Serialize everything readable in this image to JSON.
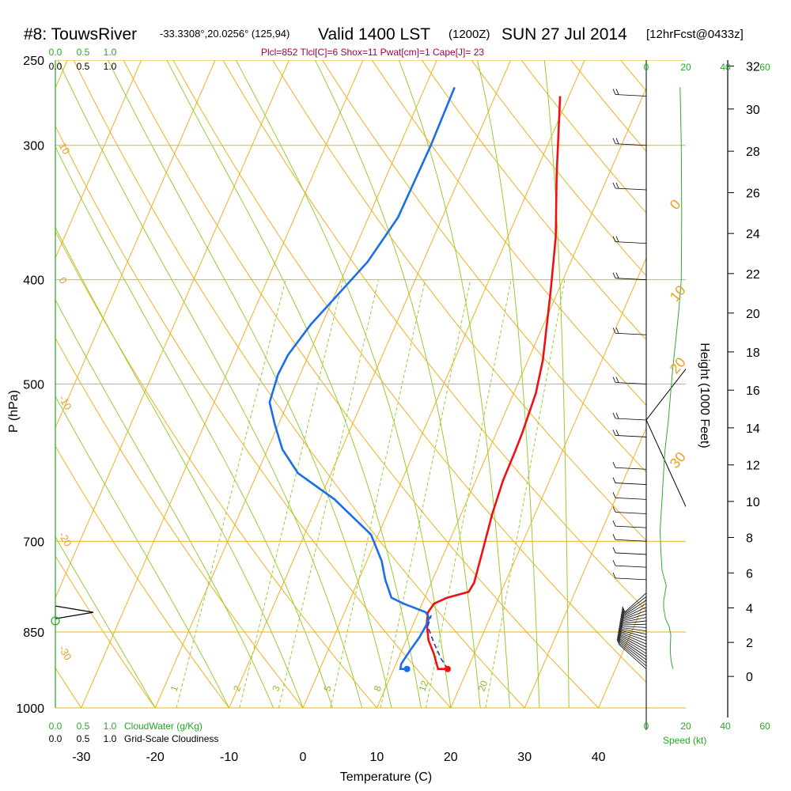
{
  "header": {
    "station": "#8: TouwsRiver",
    "coords": "-33.3308°,20.0256° (125,94)",
    "valid": "Valid 1400 LST",
    "zulu": "(1200Z)",
    "date": "SUN 27 Jul 2014",
    "forecast": "[12hrFcst@0433z]",
    "params": "Plcl=852 Tlcl[C]=6 Shox=11 Pwat[cm]=1 Cape[J]= 23"
  },
  "chart_data": {
    "type": "line",
    "xlabel": "Temperature (C)",
    "ylabel": "P (hPa)",
    "y2label": "Height (1000 Feet)",
    "xlim": [
      -34,
      46
    ],
    "ylim_pressure": [
      1000,
      250
    ],
    "x_ticks": [
      -30,
      -20,
      -10,
      0,
      10,
      20,
      30,
      40
    ],
    "pressure_ticks": [
      250,
      300,
      400,
      500,
      700,
      850,
      1000
    ],
    "height_ticks": [
      0,
      2,
      4,
      6,
      8,
      10,
      12,
      14,
      16,
      18,
      20,
      22,
      24,
      26,
      28,
      30,
      32
    ],
    "isotherm_labels": [
      {
        "text": "10",
        "x": -35,
        "p": 300
      },
      {
        "text": "0",
        "x": -35,
        "p": 400
      },
      {
        "text": "-10",
        "x": -35,
        "p": 515
      },
      {
        "text": "-20",
        "x": -35,
        "p": 690
      },
      {
        "text": "-30",
        "x": -35,
        "p": 880
      }
    ],
    "theta_labels": [
      {
        "text": "0",
        "x": 35.5,
        "p": 345
      },
      {
        "text": "10",
        "x": 39.5,
        "p": 420
      },
      {
        "text": "20",
        "x": 44,
        "p": 490
      },
      {
        "text": "30",
        "x": 50,
        "p": 600
      }
    ],
    "mixing_labels": [
      {
        "text": "1",
        "x": -16,
        "p": 990
      },
      {
        "text": "2",
        "x": -7.5,
        "p": 990
      },
      {
        "text": "3",
        "x": -2,
        "p": 990
      },
      {
        "text": "5",
        "x": 5,
        "p": 990
      },
      {
        "text": "8",
        "x": 11.5,
        "p": 990
      },
      {
        "text": "12",
        "x": 17,
        "p": 990
      },
      {
        "text": "20",
        "x": 26,
        "p": 990
      }
    ],
    "series": [
      {
        "name": "Temperature",
        "color": "#ee1111",
        "points": [
          [
            17.3,
            920
          ],
          [
            16.0,
            920
          ],
          [
            15.5,
            910
          ],
          [
            14.5,
            890
          ],
          [
            13.0,
            865
          ],
          [
            11.8,
            835
          ],
          [
            11.3,
            815
          ],
          [
            11.6,
            800
          ],
          [
            13.0,
            790
          ],
          [
            15.6,
            780
          ],
          [
            15.8,
            765
          ],
          [
            15.0,
            710
          ],
          [
            14.2,
            660
          ],
          [
            13.7,
            615
          ],
          [
            13.6,
            575
          ],
          [
            13.5,
            555
          ],
          [
            13.0,
            510
          ],
          [
            12.0,
            475
          ],
          [
            9.0,
            410
          ],
          [
            6.5,
            365
          ],
          [
            3.0,
            320
          ],
          [
            -1.2,
            270
          ]
        ]
      },
      {
        "name": "Dewpoint",
        "color": "#1a6ee8",
        "points": [
          [
            11.8,
            920
          ],
          [
            10.9,
            920
          ],
          [
            10.7,
            910
          ],
          [
            11.1,
            885
          ],
          [
            11.6,
            860
          ],
          [
            11.8,
            840
          ],
          [
            11.8,
            825
          ],
          [
            11.0,
            815
          ],
          [
            7.5,
            800
          ],
          [
            5.5,
            790
          ],
          [
            3.6,
            760
          ],
          [
            2.0,
            730
          ],
          [
            -1.0,
            690
          ],
          [
            -8.0,
            640
          ],
          [
            -14.5,
            605
          ],
          [
            -18.0,
            575
          ],
          [
            -20.5,
            545
          ],
          [
            -22.5,
            520
          ],
          [
            -23.0,
            490
          ],
          [
            -22.8,
            470
          ],
          [
            -21.5,
            440
          ],
          [
            -17.5,
            385
          ],
          [
            -16.0,
            350
          ],
          [
            -15.8,
            300
          ],
          [
            -16.0,
            265
          ]
        ]
      },
      {
        "name": "Parcel",
        "color": "#3333bb",
        "dashed": true,
        "points": [
          [
            17.3,
            920
          ],
          [
            15.8,
            900
          ],
          [
            13.9,
            870
          ],
          [
            12.1,
            840
          ],
          [
            11.9,
            820
          ]
        ]
      }
    ],
    "surface_points": [
      {
        "name": "sfc-temperature",
        "x": 17.3,
        "p": 920,
        "color": "#ee1111"
      },
      {
        "name": "sfc-dewpoint",
        "x": 11.8,
        "p": 920,
        "color": "#1a6ee8"
      }
    ],
    "wind_panel": {
      "speed_ticks": [
        "0",
        "20",
        "40",
        "60"
      ],
      "speed_label": "Speed (kt)",
      "speed_profile": [
        [
          13.5,
          920
        ],
        [
          12.6,
          905
        ],
        [
          12.1,
          885
        ],
        [
          12.4,
          855
        ],
        [
          11.6,
          840
        ],
        [
          9.7,
          826
        ],
        [
          8.8,
          807
        ],
        [
          8.8,
          795
        ],
        [
          10.1,
          770
        ],
        [
          8.0,
          745
        ],
        [
          7.4,
          715
        ],
        [
          7.0,
          685
        ],
        [
          7.5,
          660
        ],
        [
          8.0,
          640
        ],
        [
          8.5,
          615
        ],
        [
          9.3,
          580
        ],
        [
          11.2,
          540
        ],
        [
          13.1,
          490
        ],
        [
          16.3,
          430
        ],
        [
          17.7,
          400
        ],
        [
          17.9,
          350
        ],
        [
          17.7,
          300
        ],
        [
          17.1,
          265
        ]
      ]
    },
    "cloud_panel": {
      "cloudwater_ticks": [
        "0.0",
        "0.5",
        "1.0"
      ],
      "cloudwater_label": "CloudWater (g/Kg)",
      "cloudiness_ticks": [
        "0.0",
        "0.5",
        "1.0"
      ],
      "cloudiness_label": "Grid-Scale Cloudiness",
      "cloud_marker_pressure": 815
    }
  }
}
